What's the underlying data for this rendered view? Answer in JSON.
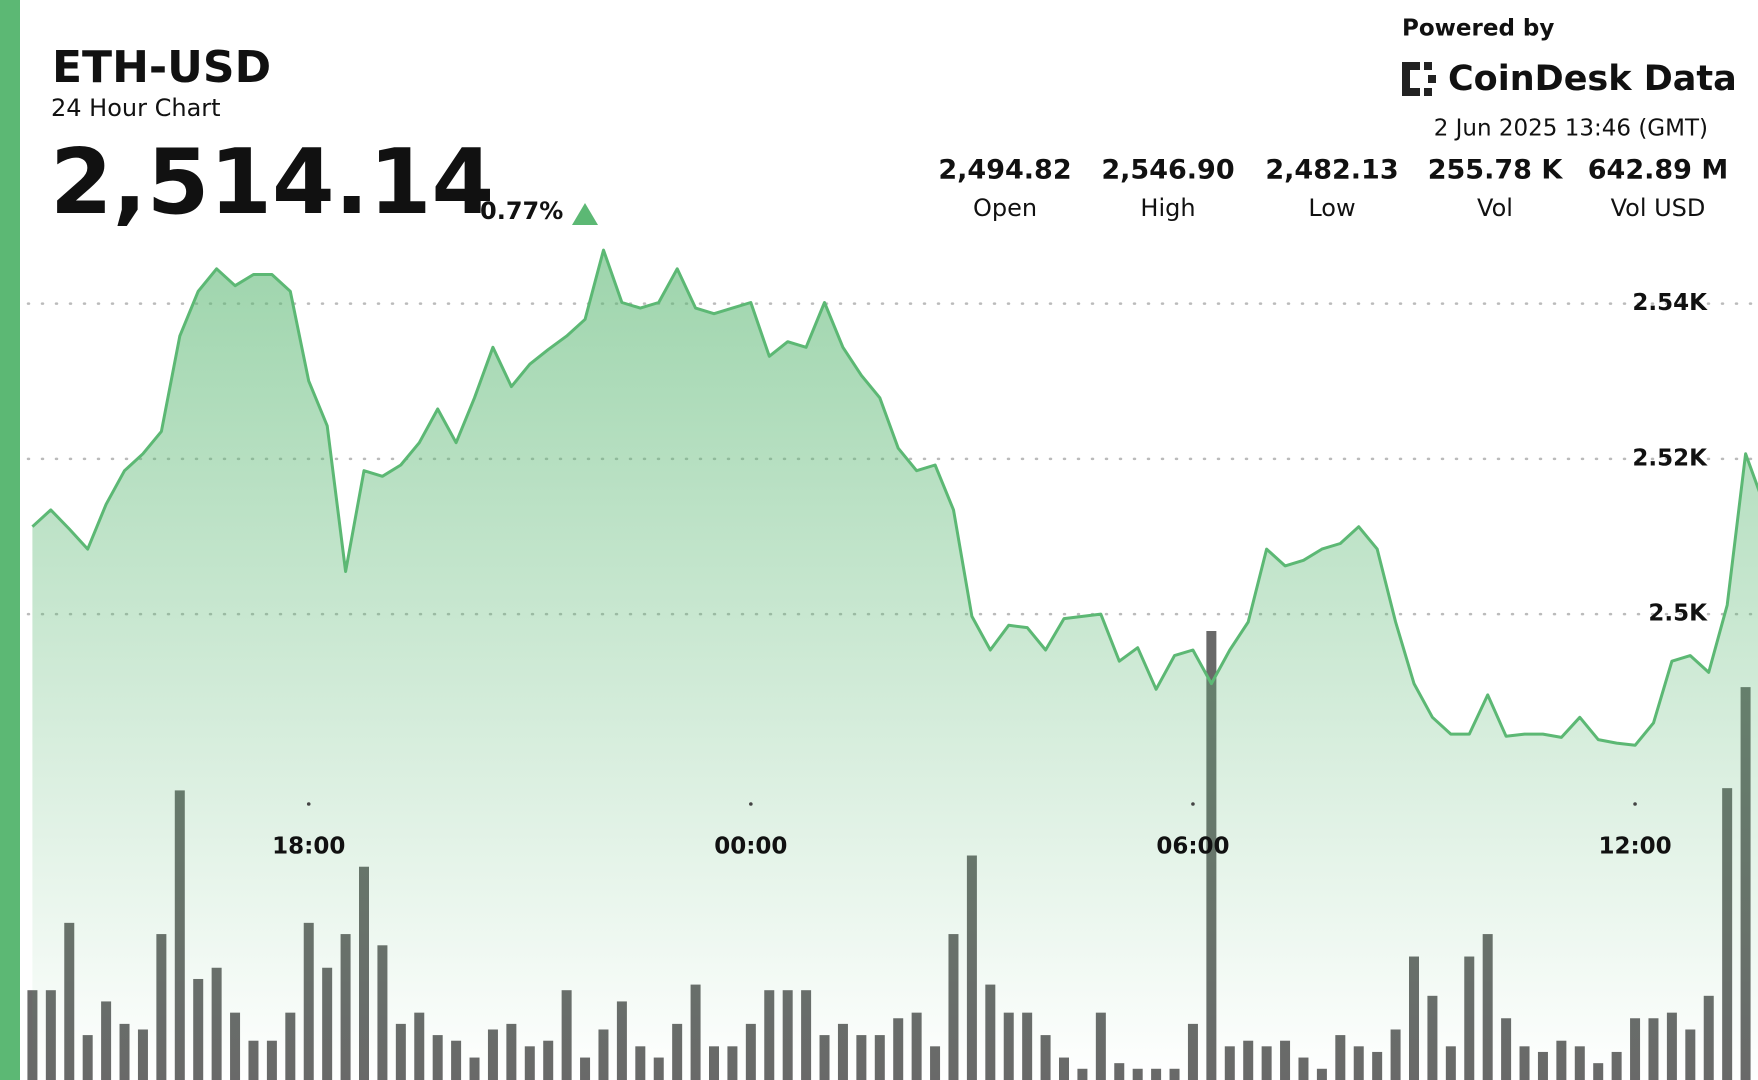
{
  "header": {
    "title": "ETH-USD",
    "subtitle": "24 Hour Chart",
    "price": "2,514.14",
    "change": "0.77%",
    "powered_by": "Powered by",
    "brand": "CoinDesk Data",
    "timestamp": "2 Jun 2025 13:46 (GMT)",
    "stats": [
      {
        "value": "2,494.82",
        "label": "Open"
      },
      {
        "value": "2,546.90",
        "label": "High"
      },
      {
        "value": "2,482.13",
        "label": "Low"
      },
      {
        "value": "255.78 K",
        "label": "Vol"
      },
      {
        "value": "642.89 M",
        "label": "Vol USD"
      }
    ]
  },
  "chart_data": {
    "type": "line",
    "color": "#5cb874",
    "x": [
      "14:15",
      "14:30",
      "14:45",
      "15:00",
      "15:15",
      "15:30",
      "15:45",
      "16:00",
      "16:15",
      "16:30",
      "16:45",
      "17:00",
      "17:15",
      "17:30",
      "17:45",
      "18:00",
      "18:15",
      "18:30",
      "18:45",
      "19:00",
      "19:15",
      "19:30",
      "19:45",
      "20:00",
      "20:15",
      "20:30",
      "20:45",
      "21:00",
      "21:15",
      "21:30",
      "21:45",
      "22:00",
      "22:15",
      "22:30",
      "22:45",
      "23:00",
      "23:15",
      "23:30",
      "23:45",
      "00:00",
      "00:15",
      "00:30",
      "00:45",
      "01:00",
      "01:15",
      "01:30",
      "01:45",
      "02:00",
      "02:15",
      "02:30",
      "02:45",
      "03:00",
      "03:15",
      "03:30",
      "03:45",
      "04:00",
      "04:15",
      "04:30",
      "04:45",
      "05:00",
      "05:15",
      "05:30",
      "05:45",
      "06:00",
      "06:15",
      "06:30",
      "06:45",
      "07:00",
      "07:15",
      "07:30",
      "07:45",
      "08:00",
      "08:15",
      "08:30",
      "08:45",
      "09:00",
      "09:15",
      "09:30",
      "09:45",
      "10:00",
      "10:15",
      "10:30",
      "10:45",
      "11:00",
      "11:15",
      "11:30",
      "11:45",
      "12:00",
      "12:15",
      "12:30",
      "12:45",
      "13:00",
      "13:15",
      "13:30",
      "13:45"
    ],
    "values": [
      2511.26,
      2513.43,
      2510.97,
      2508.38,
      2514.15,
      2518.48,
      2520.65,
      2523.54,
      2535.81,
      2541.59,
      2544.48,
      2542.31,
      2543.75,
      2543.75,
      2541.59,
      2530.04,
      2524.26,
      2505.49,
      2518.48,
      2517.76,
      2519.21,
      2522.09,
      2526.43,
      2522.09,
      2527.87,
      2534.37,
      2529.31,
      2532.2,
      2534.08,
      2535.81,
      2537.98,
      2546.9,
      2540.14,
      2539.42,
      2540.14,
      2544.48,
      2539.42,
      2538.7,
      2539.42,
      2540.14,
      2533.21,
      2535.09,
      2534.37,
      2540.14,
      2534.37,
      2530.76,
      2527.87,
      2521.37,
      2518.48,
      2519.21,
      2513.43,
      2499.71,
      2495.38,
      2498.56,
      2498.27,
      2495.38,
      2499.42,
      2499.71,
      2500,
      2493.94,
      2495.67,
      2490.32,
      2494.66,
      2495.38,
      2491.05,
      2495.38,
      2498.99,
      2508.38,
      2506.21,
      2506.93,
      2508.38,
      2509.1,
      2511.26,
      2508.38,
      2498.99,
      2491.05,
      2486.71,
      2484.55,
      2484.55,
      2489.6,
      2484.26,
      2484.55,
      2484.55,
      2484.12,
      2486.71,
      2483.83,
      2483.39,
      2483.1,
      2485.99,
      2493.94,
      2494.66,
      2492.49,
      2501.16,
      2520.65,
      2514.14
    ],
    "volume": {
      "color": "#4f4f4f",
      "values": [
        800,
        800,
        1400,
        400,
        700,
        500,
        450,
        1300,
        2580,
        900,
        1000,
        600,
        350,
        350,
        600,
        1400,
        1000,
        1300,
        1900,
        1200,
        500,
        600,
        400,
        350,
        200,
        450,
        500,
        300,
        350,
        800,
        200,
        450,
        700,
        300,
        200,
        500,
        850,
        300,
        300,
        500,
        800,
        800,
        800,
        400,
        500,
        400,
        400,
        550,
        600,
        300,
        1300,
        2000,
        850,
        600,
        600,
        400,
        200,
        100,
        600,
        150,
        100,
        100,
        100,
        500,
        4000,
        300,
        350,
        300,
        350,
        200,
        100,
        400,
        300,
        250,
        450,
        1100,
        750,
        300,
        1100,
        1300,
        550,
        300,
        250,
        350,
        300,
        150,
        250,
        550,
        550,
        600,
        450,
        750,
        2600,
        3500,
        3000
      ]
    },
    "xlim": [
      "14:00",
      "13:45"
    ],
    "xticks": [
      "18:00",
      "00:00",
      "06:00",
      "12:00"
    ],
    "ylim": [
      2470,
      2550
    ],
    "yticks": [
      {
        "value": 2540,
        "label": "2.54K"
      },
      {
        "value": 2520,
        "label": "2.52K"
      },
      {
        "value": 2500,
        "label": "2.5K"
      }
    ],
    "y2lim": [
      0,
      4000
    ],
    "grid": true
  }
}
